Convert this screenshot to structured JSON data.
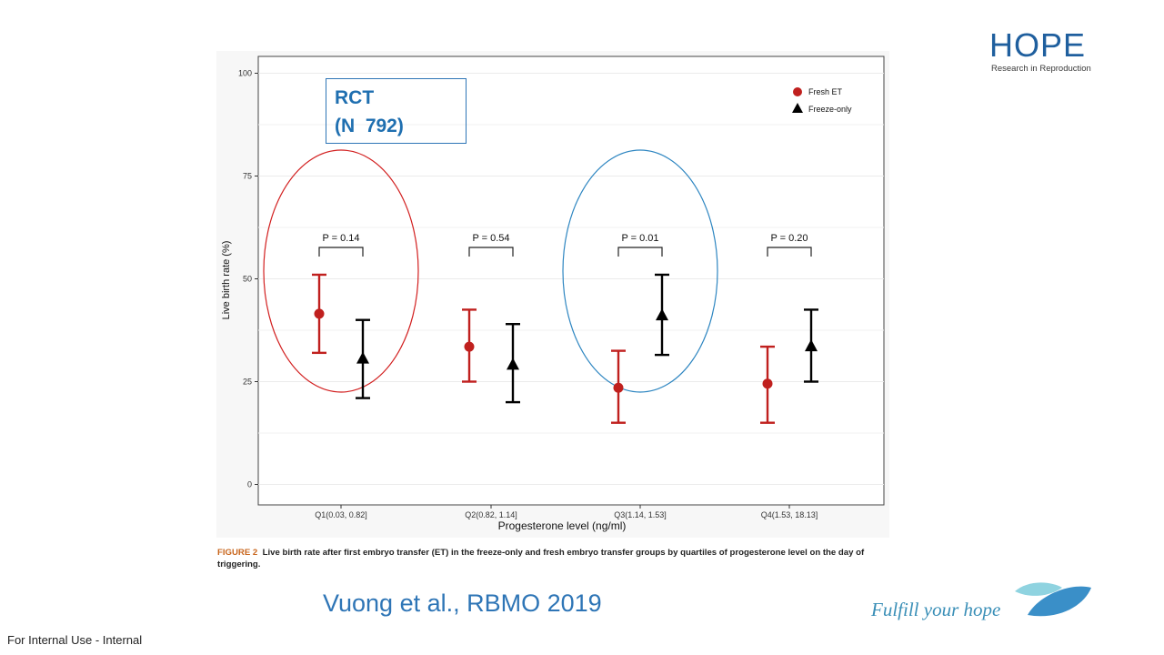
{
  "logo": {
    "word": "HOPE",
    "tagline": "Research in Reproduction",
    "brand_color": "#1f5f9e"
  },
  "rct_box": {
    "line1": "RCT",
    "line2": "(N  792)"
  },
  "figure_caption": {
    "label": "FIGURE 2",
    "text": "Live birth rate after first embryo transfer (ET) in the freeze-only and fresh embryo transfer groups by quartiles of progesterone level on the day of triggering."
  },
  "citation": "Vuong et al., RBMO 2019",
  "slogan": "Fulfill your hope",
  "footer": "For Internal Use - Internal",
  "chart_data": {
    "type": "scatter",
    "xlabel": "Progesterone level (ng/ml)",
    "ylabel": "Live birth rate (%)",
    "ylim": [
      0,
      100
    ],
    "yticks": [
      0,
      25,
      50,
      75,
      100
    ],
    "grid": true,
    "legend_position": "top-right",
    "categories": [
      "Q1(0.03, 0.82]",
      "Q2(0.82, 1.14]",
      "Q3(1.14, 1.53]",
      "Q4(1.53, 18.13]"
    ],
    "series": [
      {
        "name": "Fresh ET",
        "marker": "circle",
        "color": "#c0201e",
        "values": [
          41.5,
          33.5,
          23.5,
          24.5
        ],
        "lower": [
          32,
          25,
          15,
          15
        ],
        "upper": [
          51,
          42.5,
          32.5,
          33.5
        ]
      },
      {
        "name": "Freeze-only",
        "marker": "triangle",
        "color": "#000000",
        "values": [
          30.5,
          29,
          41,
          33.5
        ],
        "lower": [
          21,
          20,
          31.5,
          25
        ],
        "upper": [
          40,
          39,
          51,
          42.5
        ]
      }
    ],
    "p_values": [
      "P = 0.14",
      "P = 0.54",
      "P = 0.01",
      "P = 0.20"
    ],
    "highlights": [
      {
        "category_index": 0,
        "color": "#d21f1f"
      },
      {
        "category_index": 2,
        "color": "#2e86c1"
      }
    ]
  }
}
